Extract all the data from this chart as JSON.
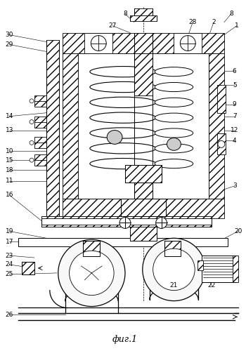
{
  "title": "фиг.1",
  "bg_color": "#ffffff",
  "fig_width": 3.5,
  "fig_height": 5.0,
  "dpi": 100
}
